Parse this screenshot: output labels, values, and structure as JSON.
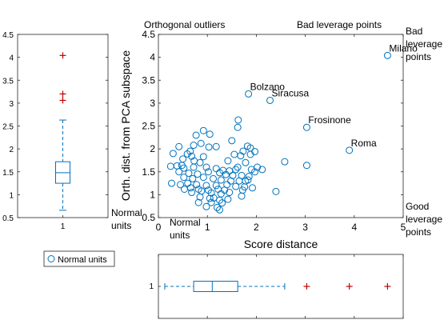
{
  "chart_data": [
    {
      "type": "scatter",
      "title": "",
      "xlabel": "Score distance",
      "ylabel": "Orth. dist. from PCA subspace",
      "xlim": [
        0,
        5
      ],
      "ylim": [
        0.5,
        4.5
      ],
      "xticks": [
        "0",
        "1",
        "2",
        "3",
        "4",
        "5"
      ],
      "yticks": [
        "0.5",
        "1",
        "1.5",
        "2",
        "2.5",
        "3",
        "3.5",
        "4",
        "4.5"
      ],
      "grid": false,
      "marker": "open-circle",
      "color": "#0072BD",
      "quadrant_labels": {
        "top_left": "Orthogonal outliers",
        "top_right": "Bad leverage points",
        "right_top": [
          "Bad",
          "leverage",
          "points"
        ],
        "right_bottom": [
          "Good",
          "leverage",
          "points"
        ],
        "bottom_left": [
          "Normal",
          "units"
        ],
        "left_bottom": [
          "Normal",
          "units"
        ]
      },
      "labeled_points": [
        {
          "label": "Milano",
          "x": 4.68,
          "y": 4.04
        },
        {
          "label": "Bolzano",
          "x": 1.84,
          "y": 3.2
        },
        {
          "label": "Siracusa",
          "x": 2.28,
          "y": 3.06
        },
        {
          "label": "Frosinone",
          "x": 3.03,
          "y": 2.47
        },
        {
          "label": "Roma",
          "x": 3.9,
          "y": 1.97
        }
      ],
      "series": [
        {
          "name": "Normal units",
          "points": [
            [
              4.68,
              4.04
            ],
            [
              1.84,
              3.2
            ],
            [
              2.28,
              3.06
            ],
            [
              3.03,
              2.47
            ],
            [
              3.9,
              1.97
            ],
            [
              3.03,
              1.64
            ],
            [
              2.58,
              1.72
            ],
            [
              2.4,
              1.07
            ],
            [
              1.63,
              2.63
            ],
            [
              1.62,
              2.47
            ],
            [
              0.92,
              2.4
            ],
            [
              1.05,
              2.32
            ],
            [
              0.77,
              2.3
            ],
            [
              1.5,
              2.18
            ],
            [
              0.87,
              2.12
            ],
            [
              0.72,
              2.08
            ],
            [
              1.03,
              2.04
            ],
            [
              1.18,
              2.05
            ],
            [
              1.82,
              2.06
            ],
            [
              1.88,
              2.02
            ],
            [
              1.97,
              1.94
            ],
            [
              1.73,
              1.95
            ],
            [
              0.42,
              2.05
            ],
            [
              0.65,
              1.95
            ],
            [
              0.3,
              1.9
            ],
            [
              0.59,
              1.89
            ],
            [
              0.68,
              1.84
            ],
            [
              0.92,
              1.83
            ],
            [
              1.55,
              1.88
            ],
            [
              1.68,
              1.85
            ],
            [
              1.88,
              1.88
            ],
            [
              0.5,
              1.78
            ],
            [
              0.73,
              1.74
            ],
            [
              0.85,
              1.7
            ],
            [
              1.42,
              1.74
            ],
            [
              1.78,
              1.7
            ],
            [
              2.02,
              1.6
            ],
            [
              2.12,
              1.55
            ],
            [
              1.9,
              1.55
            ],
            [
              0.25,
              1.62
            ],
            [
              0.38,
              1.63
            ],
            [
              0.52,
              1.58
            ],
            [
              0.72,
              1.6
            ],
            [
              0.98,
              1.6
            ],
            [
              1.18,
              1.57
            ],
            [
              1.32,
              1.53
            ],
            [
              1.45,
              1.52
            ],
            [
              1.58,
              1.55
            ],
            [
              1.97,
              1.5
            ],
            [
              0.42,
              1.5
            ],
            [
              0.62,
              1.47
            ],
            [
              0.8,
              1.45
            ],
            [
              1.02,
              1.5
            ],
            [
              1.25,
              1.48
            ],
            [
              1.38,
              1.44
            ],
            [
              1.52,
              1.42
            ],
            [
              1.7,
              1.42
            ],
            [
              1.85,
              1.4
            ],
            [
              0.52,
              1.38
            ],
            [
              0.7,
              1.35
            ],
            [
              0.92,
              1.38
            ],
            [
              1.12,
              1.35
            ],
            [
              1.28,
              1.32
            ],
            [
              1.48,
              1.3
            ],
            [
              1.65,
              1.3
            ],
            [
              1.83,
              1.32
            ],
            [
              0.27,
              1.25
            ],
            [
              0.45,
              1.22
            ],
            [
              0.6,
              1.25
            ],
            [
              0.78,
              1.22
            ],
            [
              0.98,
              1.2
            ],
            [
              1.18,
              1.2
            ],
            [
              1.4,
              1.22
            ],
            [
              1.58,
              1.18
            ],
            [
              1.76,
              1.17
            ],
            [
              0.53,
              1.12
            ],
            [
              0.66,
              1.15
            ],
            [
              0.82,
              1.12
            ],
            [
              1.02,
              1.1
            ],
            [
              1.22,
              1.12
            ],
            [
              1.35,
              1.1
            ],
            [
              1.72,
              1.1
            ],
            [
              1.92,
              1.15
            ],
            [
              0.68,
              1.05
            ],
            [
              0.88,
              1.08
            ],
            [
              1.08,
              1.04
            ],
            [
              1.28,
              1.02
            ],
            [
              1.45,
              1.05
            ],
            [
              1.7,
              0.97
            ],
            [
              0.85,
              0.95
            ],
            [
              1.05,
              0.92
            ],
            [
              1.25,
              0.88
            ],
            [
              1.42,
              0.9
            ],
            [
              0.82,
              0.83
            ],
            [
              1.08,
              0.83
            ],
            [
              1.3,
              0.82
            ],
            [
              0.98,
              0.74
            ],
            [
              1.2,
              0.72
            ],
            [
              1.25,
              0.67
            ],
            [
              1.13,
              0.93
            ],
            [
              0.48,
              1.64
            ],
            [
              1.62,
              1.6
            ],
            [
              1.78,
              1.3
            ]
          ]
        }
      ]
    },
    {
      "type": "boxplot",
      "orientation": "vertical",
      "axis": "Orth. dist. from PCA subspace",
      "ylim": [
        0.5,
        4.5
      ],
      "yticks": [
        "0.5",
        "1",
        "1.5",
        "2",
        "2.5",
        "3",
        "3.5",
        "4",
        "4.5"
      ],
      "category_label": "1",
      "box_color": "#0072BD",
      "median_color": "#0072BD",
      "outlier_color": "#C00000",
      "whisker_low": 0.66,
      "q1": 1.25,
      "median": 1.48,
      "q3": 1.72,
      "whisker_high": 2.63,
      "outliers": [
        3.06,
        3.2,
        4.04
      ]
    },
    {
      "type": "boxplot",
      "orientation": "horizontal",
      "axis": "Score distance",
      "xlim": [
        0,
        5
      ],
      "category_label": "1",
      "box_color": "#0072BD",
      "outlier_color": "#C00000",
      "whisker_low": 0.13,
      "q1": 0.72,
      "median": 1.1,
      "q3": 1.62,
      "whisker_high": 2.58,
      "outliers": [
        3.03,
        3.9,
        4.68
      ]
    }
  ],
  "legend": {
    "label": "Normal units",
    "marker": "open-circle",
    "color": "#0072BD"
  }
}
